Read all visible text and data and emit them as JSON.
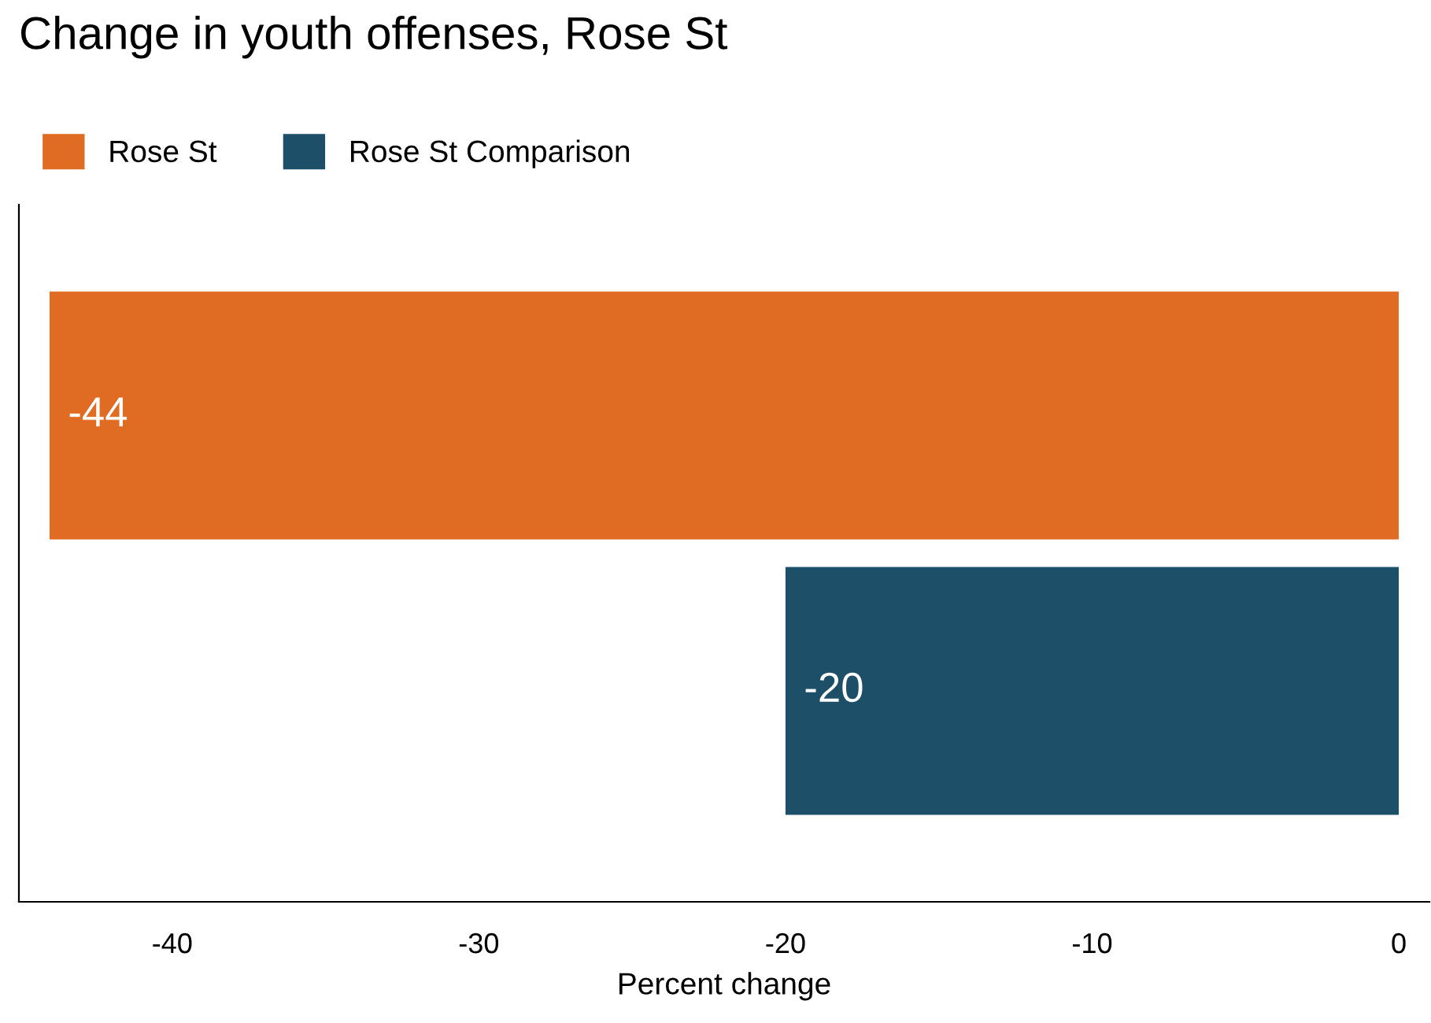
{
  "chart_data": {
    "type": "bar",
    "orientation": "horizontal",
    "title": "Change in youth offenses, Rose St",
    "xlabel": "Percent change",
    "categories": [
      null
    ],
    "series": [
      {
        "name": "Rose St",
        "color": "#e06c23",
        "values": [
          -44
        ]
      },
      {
        "name": "Rose St Comparison",
        "color": "#1d4f69",
        "values": [
          -20
        ]
      }
    ],
    "xlim": [
      -45,
      1
    ],
    "xticks": [
      -40,
      -30,
      -20,
      -10,
      0
    ],
    "grid": false,
    "legend": "top left",
    "data_labels": true
  }
}
